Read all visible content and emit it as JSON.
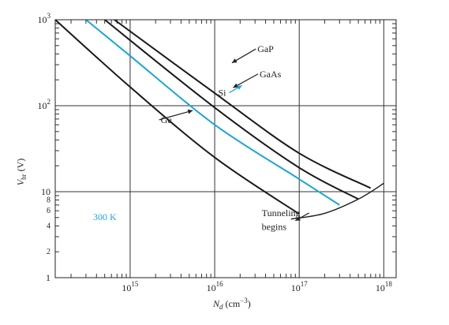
{
  "chart_data": {
    "type": "line",
    "title": "",
    "xlabel": "N_d (cm⁻³)",
    "ylabel": "V_br (V)",
    "x_scale": "log",
    "y_scale": "log",
    "xlim": [
      130000000000000.0,
      1.4e+18
    ],
    "ylim": [
      1,
      1000
    ],
    "x_ticks": [
      {
        "value": 1000000000000000.0,
        "base": "10",
        "exp": "15"
      },
      {
        "value": 1e+16,
        "base": "10",
        "exp": "16"
      },
      {
        "value": 1e+17,
        "base": "10",
        "exp": "17"
      },
      {
        "value": 1e+18,
        "base": "10",
        "exp": "18"
      }
    ],
    "y_major_ticks": [
      {
        "value": 1,
        "label": "1"
      },
      {
        "value": 10,
        "label": "10"
      },
      {
        "value": 100,
        "base": "10",
        "exp": "2"
      },
      {
        "value": 1000,
        "base": "10",
        "exp": "3"
      }
    ],
    "y_minor_ticks": [
      {
        "value": 2,
        "label": "2"
      },
      {
        "value": 4,
        "label": "4"
      },
      {
        "value": 6,
        "label": "6"
      },
      {
        "value": 8,
        "label": "8"
      }
    ],
    "grid": true,
    "temperature_label": "300 K",
    "series": [
      {
        "name": "GaP",
        "color": "#1a1a1a",
        "points": [
          [
            650000000000000.0,
            1000
          ],
          [
            1e+16,
            140
          ],
          [
            1e+17,
            28
          ],
          [
            7e+17,
            11
          ]
        ]
      },
      {
        "name": "GaAs",
        "color": "#1a1a1a",
        "points": [
          [
            500000000000000.0,
            1000
          ],
          [
            1e+16,
            95
          ],
          [
            1e+17,
            19
          ],
          [
            5e+17,
            8.2
          ]
        ]
      },
      {
        "name": "Si",
        "color": "#1ba6d4",
        "points": [
          [
            300000000000000.0,
            1000
          ],
          [
            1000000000000000.0,
            380
          ],
          [
            1e+16,
            60
          ],
          [
            1e+17,
            14
          ],
          [
            3e+17,
            7
          ]
        ]
      },
      {
        "name": "Ge",
        "color": "#1a1a1a",
        "points": [
          [
            130000000000000.0,
            1000
          ],
          [
            1000000000000000.0,
            165
          ],
          [
            1e+16,
            25
          ],
          [
            1e+17,
            5.5
          ]
        ]
      }
    ],
    "tunneling_curve": {
      "color": "#1a1a1a",
      "points": [
        [
          8e+16,
          4.8
        ],
        [
          2e+17,
          5.6
        ],
        [
          5e+17,
          8.2
        ],
        [
          1e+18,
          12.5
        ]
      ]
    },
    "annotations": [
      {
        "text": "GaP",
        "series": "GaP",
        "x": 3.2e+16,
        "y": 420,
        "target_x": 1.6e+16,
        "target_y": 315
      },
      {
        "text": "GaAs",
        "series": "GaAs",
        "x": 3.4e+16,
        "y": 215,
        "target_x": 1.65e+16,
        "target_y": 162
      },
      {
        "text": "Si",
        "series": "Si",
        "x": 1.1e+16,
        "y": 130,
        "target_x": 2.1e+16,
        "target_y": 172
      },
      {
        "text": "Ge",
        "series": "Ge",
        "x": 2300000000000000.0,
        "y": 63,
        "target_x": 5500000000000000.0,
        "target_y": 88
      },
      {
        "text": "Tunneling",
        "x": 3.6e+16,
        "y": 5.2,
        "target_x": 9e+16,
        "target_y": 4.6
      },
      {
        "text": "begins",
        "x": 3.6e+16,
        "y": 3.6
      }
    ]
  }
}
